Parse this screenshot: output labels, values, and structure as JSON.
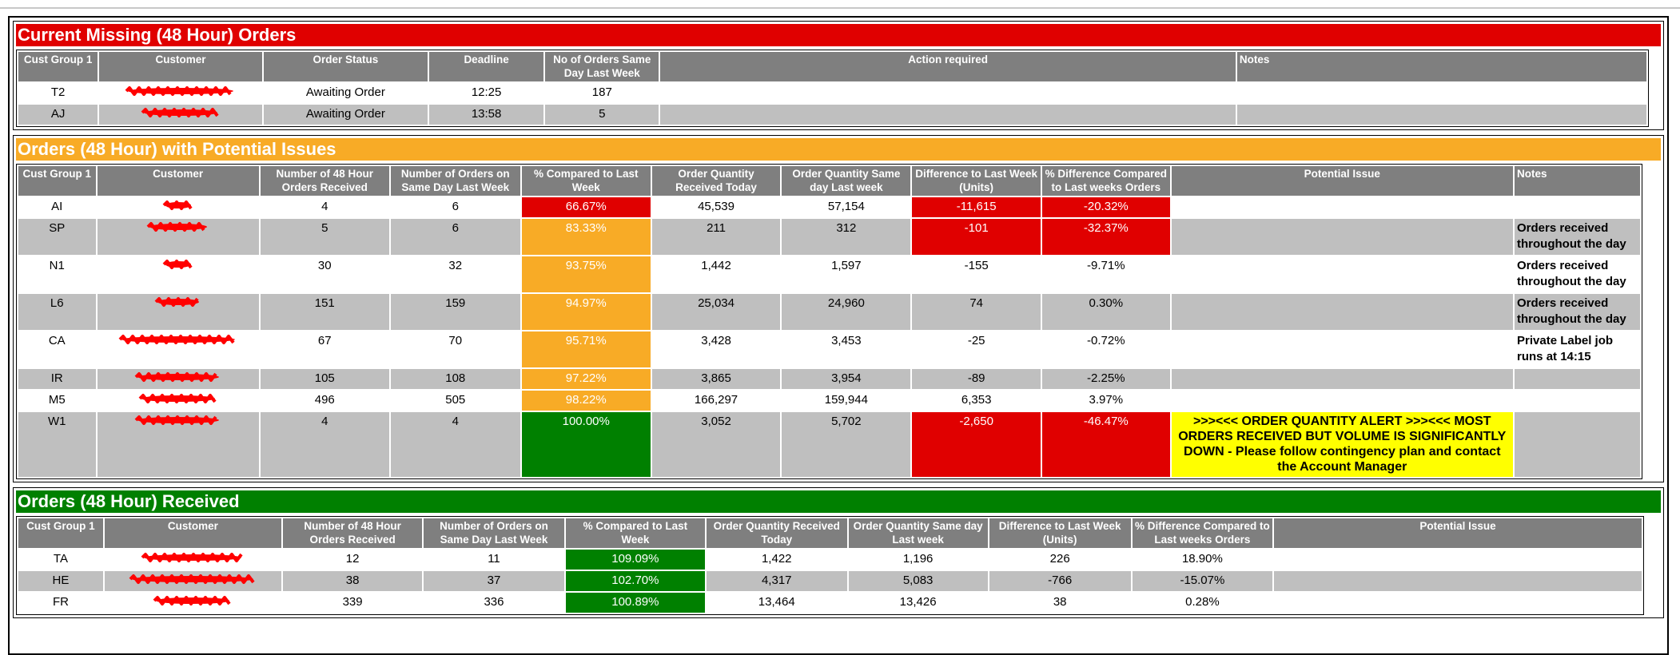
{
  "sections": [
    {
      "title": "Current Missing (48 Hour) Orders",
      "color": "#e00000",
      "headers": [
        "Cust Group 1",
        "Customer",
        "Order Status",
        "Deadline",
        "No of Orders Same Day Last Week",
        "Action required",
        "Notes"
      ],
      "rows": [
        [
          "T2",
          null,
          "Awaiting Order",
          "12:25",
          "187",
          null,
          null
        ],
        [
          "AJ",
          null,
          "Awaiting Order",
          "13:58",
          "5",
          null,
          null
        ]
      ],
      "cell_colors": [
        [
          null,
          null,
          null,
          null,
          null,
          null,
          null
        ],
        [
          null,
          null,
          null,
          null,
          null,
          null,
          null
        ]
      ]
    },
    {
      "title": "Orders (48 Hour) with Potential Issues",
      "color": "#f8ab26",
      "headers": [
        "Cust Group 1",
        "Customer",
        "Number of 48 Hour Orders Received",
        "Number of Orders on Same Day Last Week",
        "% Compared to Last Week",
        "Order Quantity Received Today",
        "Order Quantity Same day Last week",
        "Difference to Last Week (Units)",
        "% Difference Compared to Last weeks Orders",
        "Potential Issue",
        "Notes"
      ],
      "rows": [
        [
          "AI",
          null,
          "4",
          "6",
          "66.67%",
          "45,539",
          "57,154",
          "-11,615",
          "-20.32%",
          null,
          null
        ],
        [
          "SP",
          null,
          "5",
          "6",
          "83.33%",
          "211",
          "312",
          "-101",
          "-32.37%",
          null,
          "Orders received throughout the day"
        ],
        [
          "N1",
          null,
          "30",
          "32",
          "93.75%",
          "1,442",
          "1,597",
          "-155",
          "-9.71%",
          null,
          "Orders received throughout the day"
        ],
        [
          "L6",
          null,
          "151",
          "159",
          "94.97%",
          "25,034",
          "24,960",
          "74",
          "0.30%",
          null,
          "Orders received throughout the day"
        ],
        [
          "CA",
          null,
          "67",
          "70",
          "95.71%",
          "3,428",
          "3,453",
          "-25",
          "-0.72%",
          null,
          "Private Label job runs at 14:15"
        ],
        [
          "IR",
          null,
          "105",
          "108",
          "97.22%",
          "3,865",
          "3,954",
          "-89",
          "-2.25%",
          null,
          null
        ],
        [
          "M5",
          null,
          "496",
          "505",
          "98.22%",
          "166,297",
          "159,944",
          "6,353",
          "3.97%",
          null,
          null
        ],
        [
          "W1",
          null,
          "4",
          "4",
          "100.00%",
          "3,052",
          "5,702",
          "-2,650",
          "-46.47%",
          ">>><<< ORDER QUANTITY ALERT >>><<< MOST ORDERS RECEIVED BUT VOLUME IS SIGNIFICANTLY DOWN - Please follow contingency plan and contact the Account Manager",
          null
        ]
      ],
      "cell_colors": [
        [
          null,
          null,
          null,
          null,
          "#e00000",
          null,
          null,
          "#e00000",
          "#e00000",
          null,
          null
        ],
        [
          null,
          null,
          null,
          null,
          "#f8ab26",
          null,
          null,
          "#e00000",
          "#e00000",
          null,
          null
        ],
        [
          null,
          null,
          null,
          null,
          "#f8ab26",
          null,
          null,
          null,
          null,
          null,
          null
        ],
        [
          null,
          null,
          null,
          null,
          "#f8ab26",
          null,
          null,
          null,
          null,
          null,
          null
        ],
        [
          null,
          null,
          null,
          null,
          "#f8ab26",
          null,
          null,
          null,
          null,
          null,
          null
        ],
        [
          null,
          null,
          null,
          null,
          "#f8ab26",
          null,
          null,
          null,
          null,
          null,
          null
        ],
        [
          null,
          null,
          null,
          null,
          "#f8ab26",
          null,
          null,
          null,
          null,
          null,
          null
        ],
        [
          null,
          null,
          null,
          null,
          "#008000",
          null,
          null,
          "#e00000",
          "#e00000",
          "#ffff00",
          null
        ]
      ]
    },
    {
      "title": "Orders (48 Hour) Received",
      "color": "#008000",
      "headers": [
        "Cust Group 1",
        "Customer",
        "Number of 48 Hour Orders Received",
        "Number of Orders on Same Day Last Week",
        "% Compared to Last Week",
        "Order Quantity Received Today",
        "Order Quantity Same day Last week",
        "Difference to Last Week (Units)",
        "% Difference Compared to Last weeks Orders",
        "Potential Issue"
      ],
      "rows": [
        [
          "TA",
          null,
          "12",
          "11",
          "109.09%",
          "1,422",
          "1,196",
          "226",
          "18.90%",
          null
        ],
        [
          "HE",
          null,
          "38",
          "37",
          "102.70%",
          "4,317",
          "5,083",
          "-766",
          "-15.07%",
          null
        ],
        [
          "FR",
          null,
          "339",
          "336",
          "100.89%",
          "13,464",
          "13,426",
          "38",
          "0.28%",
          null
        ]
      ],
      "cell_colors": [
        [
          null,
          null,
          null,
          null,
          "#008000",
          null,
          null,
          null,
          null,
          null
        ],
        [
          null,
          null,
          null,
          null,
          "#008000",
          null,
          null,
          null,
          null,
          null
        ],
        [
          null,
          null,
          null,
          null,
          "#008000",
          null,
          null,
          null,
          null,
          null
        ]
      ]
    }
  ]
}
